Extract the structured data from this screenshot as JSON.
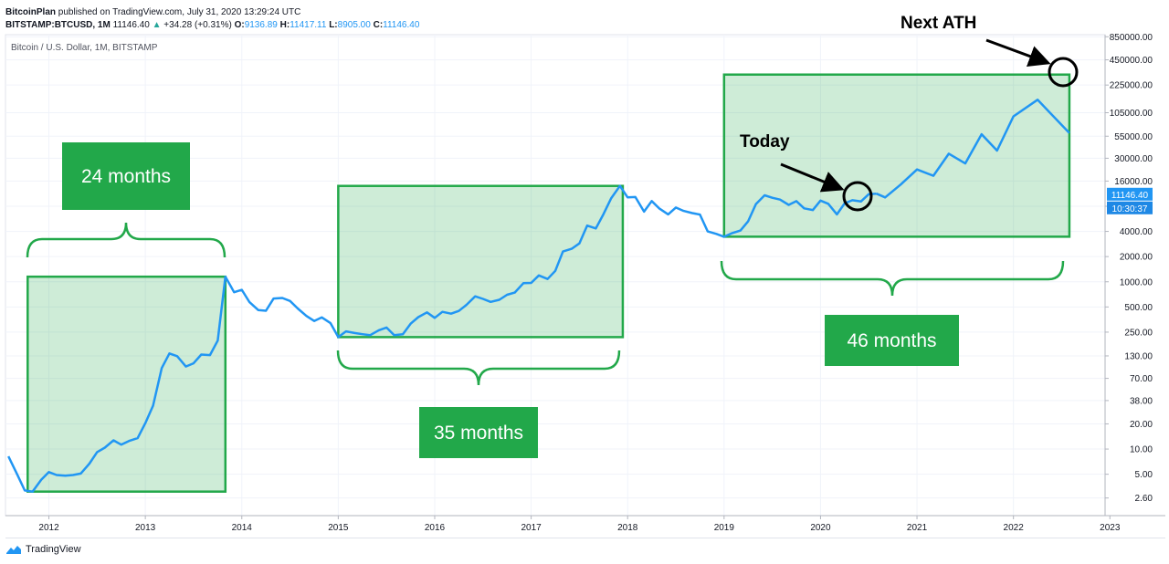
{
  "header": {
    "publisher": "BitcoinPlan",
    "published_text": "published on TradingView.com, July 31, 2020 13:29:24 UTC",
    "symbol": "BITSTAMP:BTCUSD, 1M",
    "last": "11146.40",
    "change": "+34.28 (+0.31%)",
    "o_label": "O:",
    "o": "9136.89",
    "h_label": "H:",
    "h": "11417.11",
    "l_label": "L:",
    "l": "8905.00",
    "c_label": "C:",
    "c": "11146.40"
  },
  "brand": {
    "name": "TradingView"
  },
  "chart_data": {
    "type": "line",
    "title": "Bitcoin / U.S. Dollar, 1M, BITSTAMP",
    "y_scale": "log",
    "ylim": [
      1.6,
      900000
    ],
    "xlim": [
      2011.55,
      2022.95
    ],
    "y_ticks": [
      "850000.00",
      "450000.00",
      "225000.00",
      "105000.00",
      "55000.00",
      "30000.00",
      "16000.00",
      "8000.00",
      "4000.00",
      "2000.00",
      "1000.00",
      "500.00",
      "250.00",
      "130.00",
      "70.00",
      "38.00",
      "20.00",
      "10.00",
      "5.00",
      "2.60"
    ],
    "x_ticks": [
      "2012",
      "2013",
      "2014",
      "2015",
      "2016",
      "2017",
      "2018",
      "2019",
      "2020",
      "2021",
      "2022",
      "2023"
    ],
    "price_label": "11146.40",
    "time_label": "10:30:37",
    "line_color": "#2196f3",
    "series": [
      {
        "x": [
          2011.58,
          2011.67,
          2011.75,
          2011.83,
          2011.92,
          2012.0,
          2012.08,
          2012.17,
          2012.25,
          2012.33,
          2012.42,
          2012.5,
          2012.58,
          2012.67,
          2012.75,
          2012.83,
          2012.92,
          2013.0,
          2013.08,
          2013.17,
          2013.25,
          2013.33,
          2013.42,
          2013.5,
          2013.58,
          2013.67,
          2013.75,
          2013.83,
          2013.92,
          2014.0,
          2014.08,
          2014.17,
          2014.25,
          2014.33,
          2014.42,
          2014.5,
          2014.58,
          2014.67,
          2014.75,
          2014.83,
          2014.92,
          2015.0,
          2015.08,
          2015.17,
          2015.25,
          2015.33,
          2015.42,
          2015.5,
          2015.58,
          2015.67,
          2015.75,
          2015.83,
          2015.92,
          2016.0,
          2016.08,
          2016.17,
          2016.25,
          2016.33,
          2016.42,
          2016.5,
          2016.58,
          2016.67,
          2016.75,
          2016.83,
          2016.92,
          2017.0,
          2017.08,
          2017.17,
          2017.25,
          2017.33,
          2017.42,
          2017.5,
          2017.58,
          2017.67,
          2017.75,
          2017.83,
          2017.92,
          2018.0,
          2018.08,
          2018.17,
          2018.25,
          2018.33,
          2018.42,
          2018.5,
          2018.58,
          2018.67,
          2018.75,
          2018.83,
          2018.92,
          2019.0,
          2019.08,
          2019.17,
          2019.25,
          2019.33,
          2019.42,
          2019.5,
          2019.58,
          2019.67,
          2019.75,
          2019.83,
          2019.92,
          2020.0,
          2020.08,
          2020.17,
          2020.25,
          2020.33,
          2020.42,
          2020.5,
          2020.58
        ],
        "y": [
          8.2,
          5.0,
          3.2,
          3.1,
          4.3,
          5.3,
          4.9,
          4.8,
          4.9,
          5.1,
          6.7,
          9.2,
          10.4,
          12.7,
          11.3,
          12.5,
          13.5,
          20.4,
          33.0,
          93.0,
          139.0,
          129.0,
          97.0,
          106.0,
          135.0,
          133.0,
          198.0,
          1150.0,
          750.0,
          800.0,
          570.0,
          460.0,
          450.0,
          630.0,
          640.0,
          590.0,
          480.0,
          390.0,
          340.0,
          375.0,
          320.0,
          218.0,
          255.0,
          244.0,
          236.0,
          230.0,
          263.0,
          284.0,
          230.0,
          236.0,
          315.0,
          378.0,
          430.0,
          370.0,
          437.0,
          416.0,
          448.0,
          531.0,
          670.0,
          624.0,
          575.0,
          609.0,
          700.0,
          743.0,
          963.0,
          970.0,
          1190.0,
          1080.0,
          1350.0,
          2300.0,
          2480.0,
          2880.0,
          4700.0,
          4340.0,
          6450.0,
          10000.0,
          14000.0,
          10200.0,
          10300.0,
          6900.0,
          9240.0,
          7500.0,
          6400.0,
          7730.0,
          7030.0,
          6630.0,
          6370.0,
          4000.0,
          3740.0,
          3460.0,
          3800.0,
          4100.0,
          5300.0,
          8500.0,
          10800.0,
          10100.0,
          9600.0,
          8300.0,
          9200.0,
          7550.0,
          7200.0,
          9350.0,
          8550.0,
          6400.0,
          8650.0,
          9450.0,
          9140.0,
          11146.0,
          11300.0
        ]
      },
      {
        "x": [
          2020.58,
          2020.67,
          2020.83,
          2021.0,
          2021.17,
          2021.33,
          2021.5,
          2021.67,
          2021.83,
          2022.0,
          2022.25,
          2022.58
        ],
        "y": [
          11300.0,
          10200.0,
          14500.0,
          22000.0,
          18500.0,
          34000.0,
          26000.0,
          58000.0,
          37000.0,
          95000.0,
          150000.0,
          60000.0
        ]
      }
    ],
    "annotations": {
      "box_labels": [
        "24 months",
        "35 months",
        "46 months"
      ],
      "today": "Today",
      "next_ath": "Next ATH",
      "box_color": "#22a84a"
    }
  }
}
